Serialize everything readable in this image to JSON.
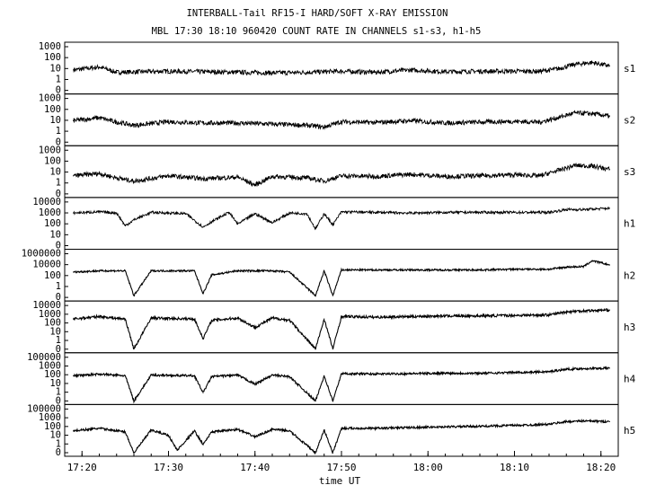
{
  "chart_data": {
    "type": "line",
    "title": "INTERBALL-Tail RF15-I HARD/SOFT X-RAY EMISSION",
    "subtitle": "MBL 17:30 18:10 960420  COUNT RATE IN CHANNELS s1-s3, h1-h5",
    "xlabel": "time UT",
    "x_scale": "time",
    "x_range": [
      "17:18",
      "18:22"
    ],
    "x_ticks": [
      "17:20",
      "17:30",
      "17:40",
      "17:50",
      "18:00",
      "18:10",
      "18:20"
    ],
    "y_scale": "log",
    "grid": false,
    "note_series": "Each panel is one channel; values are approximate count-rate levels read from the log axis at listed times (HH:MM UT).",
    "series": [
      {
        "name": "s1",
        "y_ticks": [
          "1000",
          "100",
          "10",
          "1",
          "0"
        ],
        "y_max_decade": 3,
        "x": [
          "17:19",
          "17:22",
          "17:24",
          "17:27",
          "17:30",
          "17:34",
          "17:38",
          "17:42",
          "17:46",
          "17:50",
          "17:54",
          "17:58",
          "18:02",
          "18:06",
          "18:10",
          "18:13",
          "18:15",
          "18:17",
          "18:19",
          "18:21"
        ],
        "values": [
          15,
          25,
          10,
          11,
          12,
          11,
          10,
          9,
          10,
          12,
          10,
          15,
          11,
          12,
          12,
          12,
          18,
          40,
          55,
          30
        ]
      },
      {
        "name": "s2",
        "y_ticks": [
          "1000",
          "100",
          "10",
          "1",
          "0"
        ],
        "y_max_decade": 3,
        "x": [
          "17:19",
          "17:22",
          "17:24",
          "17:26",
          "17:30",
          "17:34",
          "17:38",
          "17:42",
          "17:46",
          "17:48",
          "17:50",
          "17:54",
          "17:58",
          "18:02",
          "18:06",
          "18:10",
          "18:13",
          "18:15",
          "18:17",
          "18:19",
          "18:21"
        ],
        "values": [
          18,
          30,
          14,
          8,
          15,
          12,
          12,
          10,
          8,
          6,
          15,
          13,
          18,
          12,
          14,
          16,
          14,
          30,
          70,
          60,
          40
        ]
      },
      {
        "name": "s3",
        "y_ticks": [
          "1000",
          "100",
          "10",
          "1",
          "0"
        ],
        "y_max_decade": 3,
        "x": [
          "17:19",
          "17:22",
          "17:24",
          "17:26",
          "17:30",
          "17:34",
          "17:38",
          "17:40",
          "17:42",
          "17:46",
          "17:48",
          "17:50",
          "17:54",
          "17:58",
          "18:02",
          "18:06",
          "18:10",
          "18:13",
          "18:15",
          "18:17",
          "18:19",
          "18:21"
        ],
        "values": [
          10,
          15,
          7,
          4,
          10,
          6,
          8,
          2,
          9,
          7,
          4,
          10,
          9,
          13,
          9,
          10,
          12,
          10,
          25,
          60,
          55,
          30
        ]
      },
      {
        "name": "h1",
        "y_ticks": [
          "10000",
          "1000",
          "100",
          "10",
          "0"
        ],
        "y_max_decade": 4,
        "x": [
          "17:19",
          "17:22",
          "17:24",
          "17:25",
          "17:26",
          "17:28",
          "17:30",
          "17:32",
          "17:34",
          "17:35",
          "17:37",
          "17:38",
          "17:40",
          "17:42",
          "17:44",
          "17:46",
          "17:47",
          "17:48",
          "17:49",
          "17:50",
          "17:54",
          "17:58",
          "18:02",
          "18:06",
          "18:10",
          "18:14",
          "18:16",
          "18:18",
          "18:21"
        ],
        "values": [
          700,
          900,
          700,
          40,
          150,
          800,
          700,
          600,
          30,
          100,
          800,
          60,
          600,
          80,
          700,
          600,
          20,
          600,
          50,
          900,
          800,
          700,
          800,
          800,
          800,
          800,
          1500,
          1500,
          2000
        ]
      },
      {
        "name": "h2",
        "y_ticks": [
          "1000000",
          "10000",
          "100",
          "1",
          "0"
        ],
        "y_max_decade": 6,
        "x": [
          "17:19",
          "17:22",
          "17:25",
          "17:26",
          "17:28",
          "17:33",
          "17:34",
          "17:35",
          "17:38",
          "17:40",
          "17:42",
          "17:44",
          "17:47",
          "17:48",
          "17:49",
          "17:50",
          "17:54",
          "17:58",
          "18:02",
          "18:06",
          "18:10",
          "18:14",
          "18:16",
          "18:18",
          "18:19",
          "18:21"
        ],
        "values": [
          2000,
          3000,
          3000,
          1,
          3000,
          3000,
          2,
          800,
          3000,
          3000,
          3000,
          2000,
          1,
          3000,
          1,
          4000,
          4000,
          4000,
          4000,
          4000,
          5000,
          5000,
          10000,
          12000,
          80000,
          20000
        ]
      },
      {
        "name": "h3",
        "y_ticks": [
          "10000",
          "1000",
          "100",
          "10",
          "1",
          "0"
        ],
        "y_max_decade": 4,
        "x": [
          "17:19",
          "17:22",
          "17:25",
          "17:26",
          "17:28",
          "17:33",
          "17:34",
          "17:35",
          "17:38",
          "17:40",
          "17:42",
          "17:44",
          "17:47",
          "17:48",
          "17:49",
          "17:50",
          "17:54",
          "17:58",
          "18:02",
          "18:06",
          "18:10",
          "18:14",
          "18:16",
          "18:18",
          "18:21"
        ],
        "values": [
          400,
          700,
          400,
          0.5,
          500,
          400,
          5,
          300,
          500,
          60,
          500,
          300,
          0.5,
          400,
          0.5,
          700,
          600,
          700,
          800,
          800,
          900,
          1000,
          2000,
          2500,
          3000
        ]
      },
      {
        "name": "h4",
        "y_ticks": [
          "100000",
          "1000",
          "100",
          "10",
          "1",
          "0"
        ],
        "y_max_decade": 5,
        "x": [
          "17:19",
          "17:22",
          "17:25",
          "17:26",
          "17:28",
          "17:33",
          "17:34",
          "17:35",
          "17:38",
          "17:40",
          "17:42",
          "17:44",
          "17:47",
          "17:48",
          "17:49",
          "17:50",
          "17:54",
          "17:58",
          "18:02",
          "18:06",
          "18:10",
          "18:14",
          "18:16",
          "18:18",
          "18:21"
        ],
        "values": [
          500,
          800,
          500,
          0.5,
          600,
          500,
          5,
          400,
          600,
          50,
          600,
          400,
          0.5,
          500,
          0.5,
          900,
          800,
          900,
          1000,
          1000,
          1200,
          1500,
          3000,
          3500,
          4000
        ]
      },
      {
        "name": "h5",
        "y_ticks": [
          "100000",
          "1000",
          "100",
          "10",
          "1",
          "0"
        ],
        "y_max_decade": 5,
        "x": [
          "17:19",
          "17:22",
          "17:25",
          "17:26",
          "17:28",
          "17:30",
          "17:31",
          "17:33",
          "17:34",
          "17:35",
          "17:38",
          "17:40",
          "17:42",
          "17:44",
          "17:47",
          "17:48",
          "17:49",
          "17:50",
          "17:54",
          "17:58",
          "18:02",
          "18:06",
          "18:10",
          "18:14",
          "18:16",
          "18:18",
          "18:21"
        ],
        "values": [
          200,
          400,
          150,
          0.5,
          250,
          60,
          1,
          200,
          5,
          150,
          300,
          40,
          300,
          200,
          0.5,
          250,
          0.5,
          400,
          400,
          500,
          600,
          700,
          900,
          1200,
          2500,
          3000,
          2500
        ]
      }
    ]
  }
}
